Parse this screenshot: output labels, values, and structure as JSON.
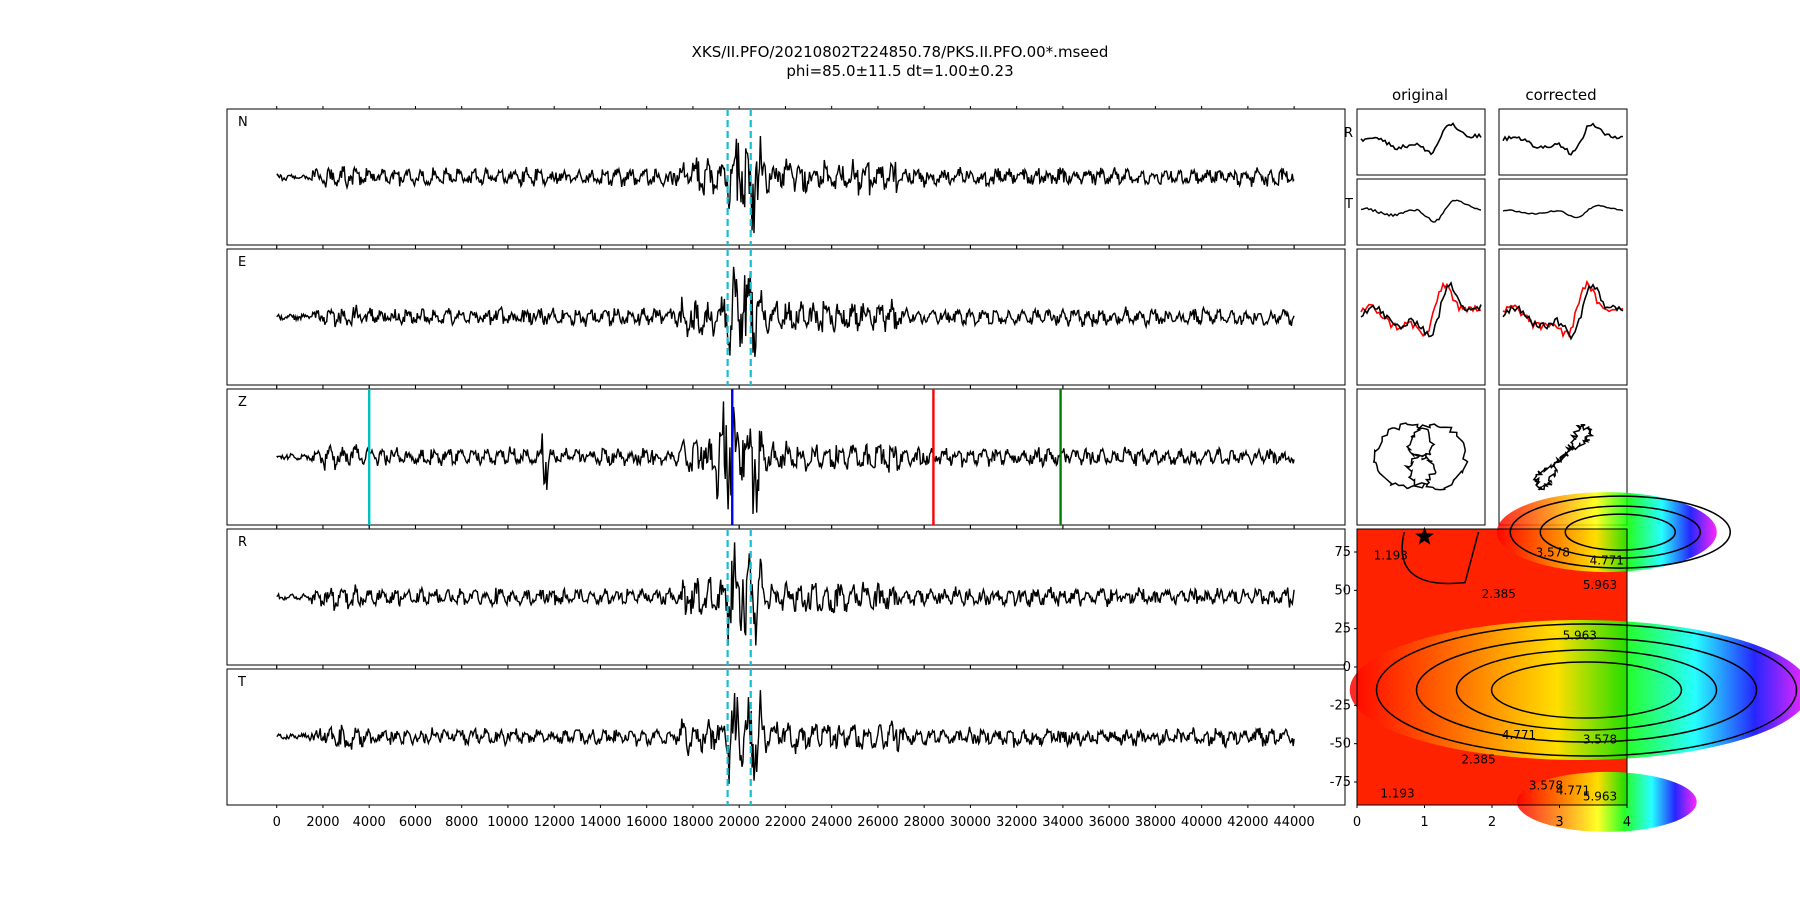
{
  "title": {
    "line1": "XKS/II.PFO/20210802T224850.78/PKS.II.PFO.00*.mseed",
    "line2": "phi=85.0±11.5 dt=1.00±0.23"
  },
  "panel_headers": {
    "original": "original",
    "corrected": "corrected"
  },
  "colors": {
    "trace": "#000000",
    "window": "#17becf",
    "marker_cyan": "#00bfbf",
    "marker_blue": "#0000ff",
    "marker_red": "#ff0000",
    "marker_green": "#008000",
    "shifted": "#ff0000"
  },
  "chart_data": [
    {
      "type": "line",
      "name": "seismograms",
      "channels": [
        "N",
        "E",
        "Z",
        "R",
        "T"
      ],
      "x_ticks": [
        0,
        2000,
        4000,
        6000,
        8000,
        10000,
        12000,
        14000,
        16000,
        18000,
        20000,
        22000,
        24000,
        26000,
        28000,
        30000,
        32000,
        34000,
        36000,
        38000,
        40000,
        42000,
        44000
      ],
      "x_range": [
        0,
        44000
      ],
      "x_limits": [
        -2150,
        46200
      ],
      "window": [
        19500,
        20500
      ],
      "markers": [
        {
          "channel": "Z",
          "x": 4000,
          "color": "cyan"
        },
        {
          "channel": "Z",
          "x": 19700,
          "color": "blue"
        },
        {
          "channel": "Z",
          "x": 28400,
          "color": "red"
        },
        {
          "channel": "Z",
          "x": 33900,
          "color": "green"
        }
      ]
    },
    {
      "type": "line",
      "name": "particle-motion",
      "columns": [
        "original",
        "corrected"
      ],
      "row_labels": [
        "R",
        "T"
      ]
    },
    {
      "type": "heatmap",
      "name": "error-surface",
      "x_ticks": [
        0,
        1,
        2,
        3,
        4
      ],
      "y_ticks": [
        75,
        50,
        25,
        0,
        -25,
        -50,
        -75
      ],
      "x_range": [
        0,
        4
      ],
      "y_range": [
        -90,
        90
      ],
      "contour_labels": [
        "1.193",
        "2.385",
        "3.578",
        "4.771",
        "5.963",
        "5.963",
        "4.771",
        "3.578",
        "2.385",
        "1.193",
        "3.578",
        "4.771",
        "5.963"
      ],
      "best": {
        "x": 1.0,
        "y": 85.0
      }
    }
  ]
}
